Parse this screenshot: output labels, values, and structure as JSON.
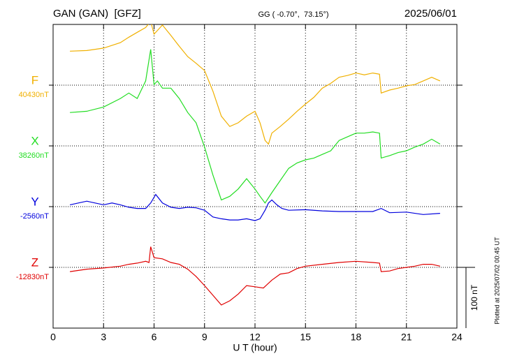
{
  "chart_data": {
    "type": "line",
    "title": "GAN (GAN)  [GFZ]",
    "subtitle": "GG ( -0.70°,  73.15°)",
    "date": "2025/06/01",
    "xlabel": "U T (hour)",
    "xlim": [
      0,
      24
    ],
    "xticks": [
      0,
      3,
      6,
      9,
      12,
      15,
      18,
      21,
      24
    ],
    "scale_bar": {
      "value": 100,
      "label": "100 nT"
    },
    "note": "Plotted at 2025/07/02 00:45 UT",
    "series": [
      {
        "name": "F",
        "color": "#f0b000",
        "baseline": {
          "value": 40430,
          "label": "40430nT"
        },
        "ylim": [
          40030,
          40530
        ],
        "x": [
          1,
          2,
          3,
          4,
          4.5,
          5,
          5.5,
          5.8,
          6,
          6.3,
          6.5,
          7,
          7.5,
          8,
          8.5,
          9,
          9.5,
          10,
          10.5,
          11,
          11.5,
          12,
          12.3,
          12.6,
          12.8,
          13,
          13.5,
          14,
          14.5,
          15,
          15.5,
          16,
          16.5,
          17,
          17.5,
          18,
          18.5,
          19,
          19.4,
          19.5,
          20,
          20.5,
          21,
          21.5,
          22,
          22.5,
          23
        ],
        "values": [
          40486,
          40487,
          40491,
          40500,
          40509,
          40517,
          40525,
          40535,
          40514,
          40523,
          40529,
          40512,
          40494,
          40477,
          40466,
          40454,
          40420,
          40379,
          40362,
          40368,
          40379,
          40387,
          40368,
          40339,
          40333,
          40351,
          40362,
          40374,
          40387,
          40399,
          40410,
          40425,
          40433,
          40443,
          40446,
          40450,
          40447,
          40450,
          40448,
          40417,
          40422,
          40425,
          40429,
          40431,
          40437,
          40443,
          40437
        ]
      },
      {
        "name": "X",
        "color": "#22dd22",
        "baseline": {
          "value": 38260,
          "label": "38260nT"
        },
        "ylim": [
          37960,
          38460
        ],
        "x": [
          1,
          2,
          3,
          4,
          4.5,
          5,
          5.5,
          5.8,
          6,
          6.2,
          6.5,
          7,
          7.5,
          8,
          8.5,
          9,
          9.5,
          10,
          10.5,
          11,
          11.5,
          12,
          12.3,
          12.6,
          13,
          13.5,
          14,
          14.5,
          15,
          15.5,
          16,
          16.5,
          17,
          17.5,
          18,
          18.5,
          19,
          19.4,
          19.5,
          20,
          20.5,
          21,
          21.5,
          22,
          22.5,
          23
        ],
        "values": [
          38315,
          38317,
          38324,
          38338,
          38347,
          38338,
          38367,
          38419,
          38361,
          38367,
          38355,
          38355,
          38338,
          38315,
          38298,
          38258,
          38212,
          38171,
          38177,
          38189,
          38206,
          38189,
          38177,
          38166,
          38183,
          38203,
          38223,
          38232,
          38237,
          38240,
          38246,
          38252,
          38269,
          38275,
          38281,
          38281,
          38283,
          38281,
          38240,
          38244,
          38249,
          38252,
          38258,
          38263,
          38271,
          38263
        ]
      },
      {
        "name": "Y",
        "color": "#0000dd",
        "baseline": {
          "value": -2560,
          "label": "-2560nT"
        },
        "ylim": [
          -2760,
          -2260
        ],
        "x": [
          1,
          1.5,
          2,
          2.5,
          3,
          3.5,
          4,
          4.5,
          5,
          5.5,
          5.8,
          6.1,
          6.5,
          7,
          7.5,
          8,
          8.5,
          9,
          9.5,
          10,
          10.5,
          11,
          11.5,
          12,
          12.3,
          12.6,
          12.8,
          13,
          13.3,
          13.6,
          14,
          15,
          16,
          17,
          18,
          19,
          19.5,
          20,
          21,
          22,
          23
        ],
        "values": [
          -2557,
          -2554,
          -2551,
          -2554,
          -2557,
          -2554,
          -2557,
          -2561,
          -2563,
          -2563,
          -2554,
          -2540,
          -2554,
          -2561,
          -2563,
          -2561,
          -2562,
          -2566,
          -2577,
          -2580,
          -2582,
          -2582,
          -2580,
          -2583,
          -2580,
          -2566,
          -2554,
          -2549,
          -2557,
          -2563,
          -2566,
          -2565,
          -2567,
          -2568,
          -2568,
          -2568,
          -2563,
          -2570,
          -2569,
          -2573,
          -2571
        ]
      },
      {
        "name": "Z",
        "color": "#e00000",
        "baseline": {
          "value": -12830,
          "label": "-12830nT"
        },
        "ylim": [
          -12930,
          -12430
        ],
        "x": [
          1,
          2,
          3,
          4,
          4.5,
          5,
          5.5,
          5.7,
          5.8,
          6,
          6.5,
          7,
          7.5,
          8,
          8.5,
          9,
          9.5,
          10,
          10.5,
          11,
          11.5,
          12,
          12.5,
          13,
          13.5,
          14,
          14.5,
          15,
          16,
          17,
          18,
          19,
          19.4,
          19.5,
          20,
          20.5,
          21,
          21.5,
          22,
          22.5,
          23
        ],
        "values": [
          -12837,
          -12833,
          -12831,
          -12828,
          -12825,
          -12823,
          -12820,
          -12822,
          -12796,
          -12814,
          -12816,
          -12822,
          -12825,
          -12833,
          -12845,
          -12860,
          -12876,
          -12892,
          -12885,
          -12874,
          -12860,
          -12862,
          -12864,
          -12851,
          -12841,
          -12839,
          -12832,
          -12828,
          -12825,
          -12822,
          -12820,
          -12822,
          -12823,
          -12837,
          -12836,
          -12832,
          -12830,
          -12828,
          -12825,
          -12825,
          -12828
        ]
      }
    ]
  }
}
